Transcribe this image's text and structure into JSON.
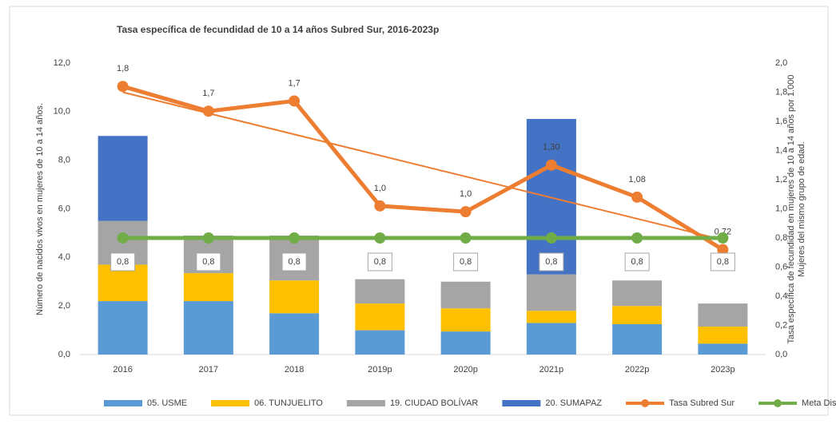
{
  "chart_data": {
    "type": "bar_line",
    "title": "Tasa específica de fecundidad de 10 a 14 años Subred Sur, 2016-2023p",
    "ylabel": "Número de nacidos vivos en mujeres de 10 a 14 años.",
    "y2label": [
      "Tasa específica de fecundidad en mujeres de 10 a 14 años por 1.000",
      "Mujeres del mismo grupo de edad."
    ],
    "categories": [
      "2016",
      "2017",
      "2018",
      "2019p",
      "2020p",
      "2021p",
      "2022p",
      "2023p"
    ],
    "ylim": [
      0,
      12
    ],
    "yticks": [
      {
        "value": 0,
        "label": "0,0"
      },
      {
        "value": 2,
        "label": "2,0"
      },
      {
        "value": 4,
        "label": "4,0"
      },
      {
        "value": 6,
        "label": "6,0"
      },
      {
        "value": 8,
        "label": "8,0"
      },
      {
        "value": 10,
        "label": "10,0"
      },
      {
        "value": 12,
        "label": "12,0"
      }
    ],
    "y2lim": [
      0,
      2
    ],
    "y2ticks": [
      {
        "value": 0,
        "label": "0,0"
      },
      {
        "value": 0.2,
        "label": "0,2"
      },
      {
        "value": 0.4,
        "label": "0,4"
      },
      {
        "value": 0.6,
        "label": "0,6"
      },
      {
        "value": 0.8,
        "label": "0,8"
      },
      {
        "value": 1,
        "label": "1,0"
      },
      {
        "value": 1.2,
        "label": "1,2"
      },
      {
        "value": 1.4,
        "label": "1,4"
      },
      {
        "value": 1.6,
        "label": "1,6"
      },
      {
        "value": 1.8,
        "label": "1,8"
      },
      {
        "value": 2,
        "label": "2,0"
      }
    ],
    "series": [
      {
        "name": "05. USME",
        "type": "bar",
        "color": "#5b9bd5",
        "values": [
          2.2,
          2.2,
          1.7,
          1.0,
          0.95,
          1.3,
          1.25,
          0.45
        ]
      },
      {
        "name": "06. TUNJUELITO",
        "type": "bar",
        "color": "#ffc000",
        "values": [
          1.5,
          1.15,
          1.35,
          1.1,
          0.95,
          0.5,
          0.75,
          0.7
        ]
      },
      {
        "name": "19. CIUDAD BOLÍVAR",
        "type": "bar",
        "color": "#a5a5a5",
        "values": [
          1.8,
          1.55,
          1.85,
          1.0,
          1.1,
          1.5,
          1.05,
          0.95
        ]
      },
      {
        "name": "20. SUMAPAZ",
        "type": "bar",
        "color": "#4472c4",
        "values": [
          3.5,
          0,
          0,
          0,
          0,
          6.4,
          0,
          0
        ]
      },
      {
        "name": "Tasa Subred Sur",
        "type": "line",
        "axis": "y2",
        "color": "#ed7d31",
        "trendline": true,
        "values": [
          1.84,
          1.67,
          1.74,
          1.02,
          0.98,
          1.3,
          1.08,
          0.72
        ],
        "value_labels": [
          "1,8",
          "1,7",
          "1,7",
          "1,0",
          "1,0",
          "1,30",
          "1,08",
          "0,72"
        ]
      },
      {
        "name": "Meta Distrital",
        "type": "line",
        "axis": "y2",
        "color": "#70ad47",
        "boxed_labels": true,
        "values": [
          0.8,
          0.8,
          0.8,
          0.8,
          0.8,
          0.8,
          0.8,
          0.8
        ],
        "value_labels": [
          "0,8",
          "0,8",
          "0,8",
          "0,8",
          "0,8",
          "0,8",
          "0,8",
          "0,8"
        ]
      }
    ]
  }
}
